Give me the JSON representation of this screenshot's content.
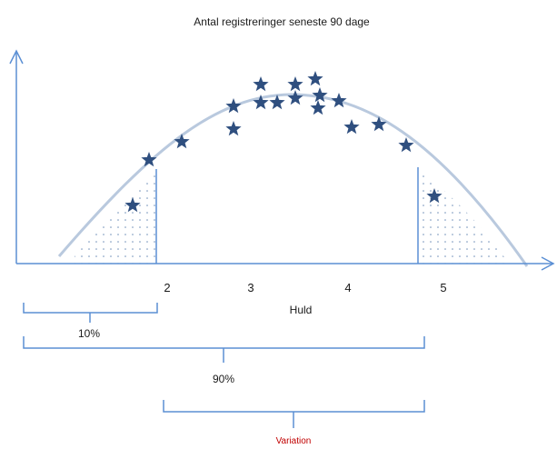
{
  "title": "Antal registreringer seneste 90 dage",
  "x_axis": {
    "label": "Huld",
    "ticks": [
      "2",
      "3",
      "4",
      "5"
    ]
  },
  "brackets": {
    "lower_tail": "10%",
    "main": "90%",
    "variation": "Variation"
  },
  "colors": {
    "axis": "#5b8fd4",
    "curve": "#b9c9de",
    "star": "#2f4f7f",
    "bracket": "#5b8fd4",
    "variation_text": "#c00000"
  },
  "icons": {
    "data_point": "star-icon"
  }
}
